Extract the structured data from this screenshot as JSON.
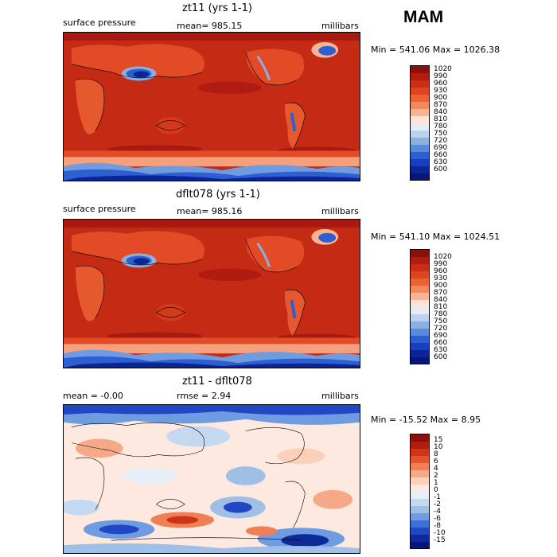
{
  "season": "MAM",
  "panels": [
    {
      "title": "zt11 (yrs 1-1)",
      "left_label": "surface pressure",
      "stat_label": "mean= 985.15",
      "stat2_label": "",
      "units": "millibars",
      "minmax": "Min = 541.06 Max = 1026.38",
      "colorbar": {
        "labels": [
          "1020",
          "990",
          "960",
          "930",
          "900",
          "870",
          "840",
          "810",
          "780",
          "750",
          "720",
          "690",
          "660",
          "630",
          "600"
        ],
        "colors": [
          "#8b0f0a",
          "#b21d10",
          "#cc2d15",
          "#de4420",
          "#ea6433",
          "#f2895a",
          "#f8b595",
          "#fde4d6",
          "#e5ecf7",
          "#bcd2ec",
          "#8ab1e0",
          "#5a8bd8",
          "#2d5fd2",
          "#1a3ec0",
          "#0a2596",
          "#08157a"
        ]
      }
    },
    {
      "title": "dflt078 (yrs 1-1)",
      "left_label": "surface pressure",
      "stat_label": "mean= 985.16",
      "stat2_label": "",
      "units": "millibars",
      "minmax": "Min = 541.10 Max = 1024.51",
      "colorbar": {
        "labels": [
          "1020",
          "990",
          "960",
          "930",
          "900",
          "870",
          "840",
          "810",
          "780",
          "750",
          "720",
          "690",
          "660",
          "630",
          "600"
        ],
        "colors": [
          "#8b0f0a",
          "#b21d10",
          "#cc2d15",
          "#de4420",
          "#ea6433",
          "#f2895a",
          "#f8b595",
          "#fde4d6",
          "#e5ecf7",
          "#bcd2ec",
          "#8ab1e0",
          "#5a8bd8",
          "#2d5fd2",
          "#1a3ec0",
          "#0a2596",
          "#08157a"
        ]
      }
    },
    {
      "title": "zt11 - dflt078",
      "left_label": "mean = -0.00",
      "stat_label": "rmse = 2.94",
      "stat2_label": "",
      "units": "millibars",
      "minmax": "Min = -15.52 Max = 8.95",
      "colorbar": {
        "labels": [
          "15",
          "10",
          "8",
          "6",
          "4",
          "2",
          "1",
          "0",
          "-1",
          "-2",
          "-4",
          "-6",
          "-8",
          "-10",
          "-15"
        ],
        "colors": [
          "#8b0f0a",
          "#b21d10",
          "#d03418",
          "#e4542a",
          "#ef7f55",
          "#f6a989",
          "#fbd0bb",
          "#fde9df",
          "#e6eef8",
          "#c4d8ef",
          "#9fbfe6",
          "#6f9be0",
          "#3f6fd6",
          "#2147c4",
          "#0e2a9a",
          "#08157a"
        ]
      }
    }
  ]
}
